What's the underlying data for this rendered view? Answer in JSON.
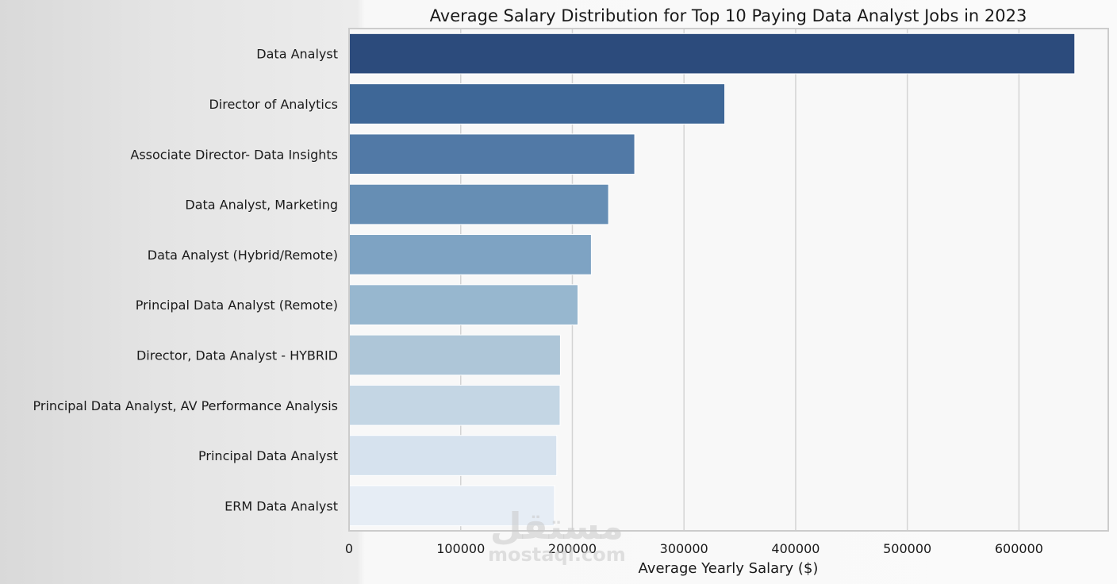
{
  "chart_data": {
    "type": "bar",
    "orientation": "horizontal",
    "title": "Average Salary Distribution for Top 10 Paying Data Analyst Jobs in 2023",
    "xlabel": "Average Yearly Salary ($)",
    "ylabel": "",
    "categories": [
      "Data Analyst",
      "Director of Analytics",
      "Associate Director- Data Insights",
      "Data Analyst, Marketing",
      "Data Analyst (Hybrid/Remote)",
      "Principal Data Analyst (Remote)",
      "Director, Data Analyst - HYBRID",
      "Principal Data Analyst, AV Performance Analysis",
      "Principal Data Analyst",
      "ERM Data Analyst"
    ],
    "values": [
      650000,
      336500,
      255830,
      232423,
      217000,
      205000,
      189309,
      189000,
      186000,
      184000
    ],
    "xlim": [
      0,
      680000
    ],
    "xticks": [
      0,
      100000,
      200000,
      300000,
      400000,
      500000,
      600000
    ],
    "xtick_labels": [
      "0",
      "100000",
      "200000",
      "300000",
      "400000",
      "500000",
      "600000"
    ],
    "grid": "vertical",
    "colors": [
      "#2c4b7c",
      "#3e6797",
      "#5179a6",
      "#668eb4",
      "#7ea3c3",
      "#97b7cf",
      "#aec6d8",
      "#c4d6e4",
      "#d6e2ee",
      "#e6edf5"
    ]
  },
  "watermark": {
    "main": "مستقل",
    "sub": "mostaql.com"
  }
}
